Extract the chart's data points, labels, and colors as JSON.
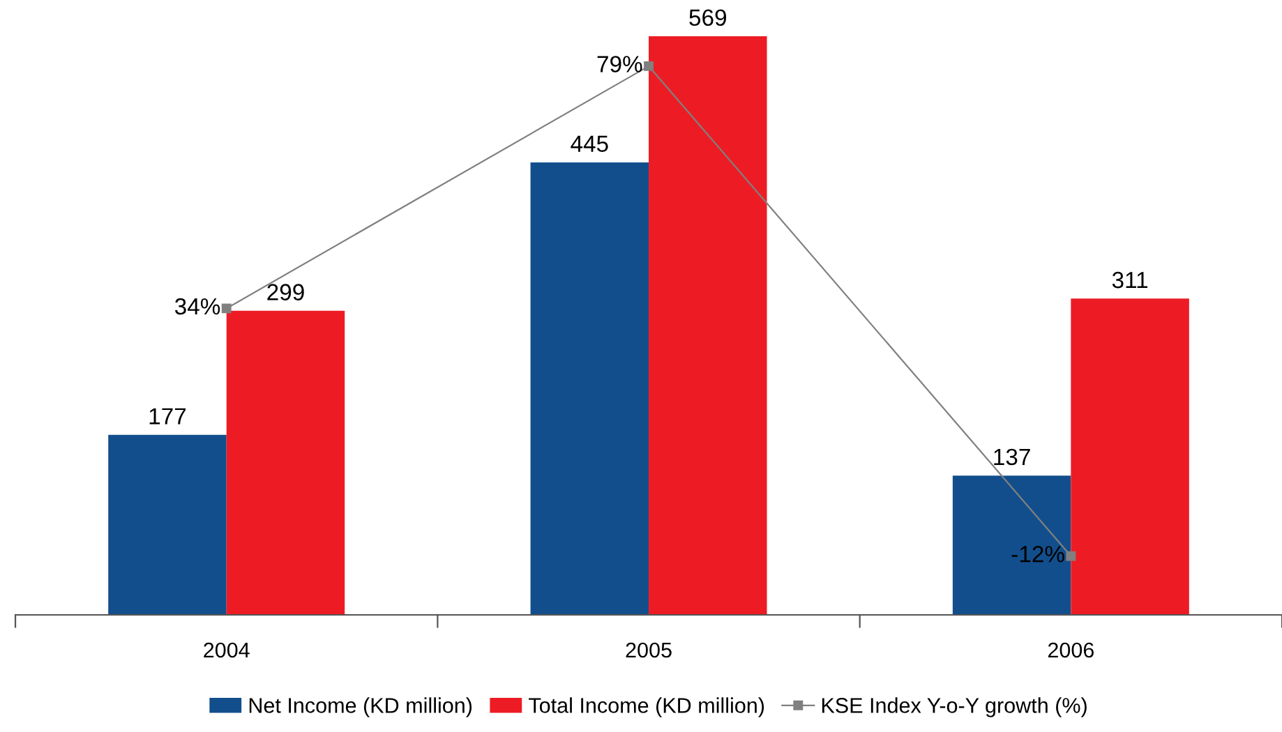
{
  "chart_data": {
    "type": "bar",
    "categories": [
      "2004",
      "2005",
      "2006"
    ],
    "data_labels": true,
    "legend": "bottom",
    "grid": false,
    "series": [
      {
        "name": "Net Income (KD million)",
        "color": "#124e8c",
        "values": [
          177,
          445,
          137
        ]
      },
      {
        "name": "Total Income (KD million)",
        "color": "#ed1c24",
        "values": [
          299,
          569,
          311
        ]
      },
      {
        "name": "KSE Index Y-o-Y growth (%)",
        "type": "line",
        "axis": "y2",
        "color": "#808080",
        "marker": "square",
        "line_style": "solid",
        "values": [
          34,
          79,
          -12
        ],
        "value_labels": [
          "34%",
          "79%",
          "-12%"
        ]
      }
    ]
  }
}
